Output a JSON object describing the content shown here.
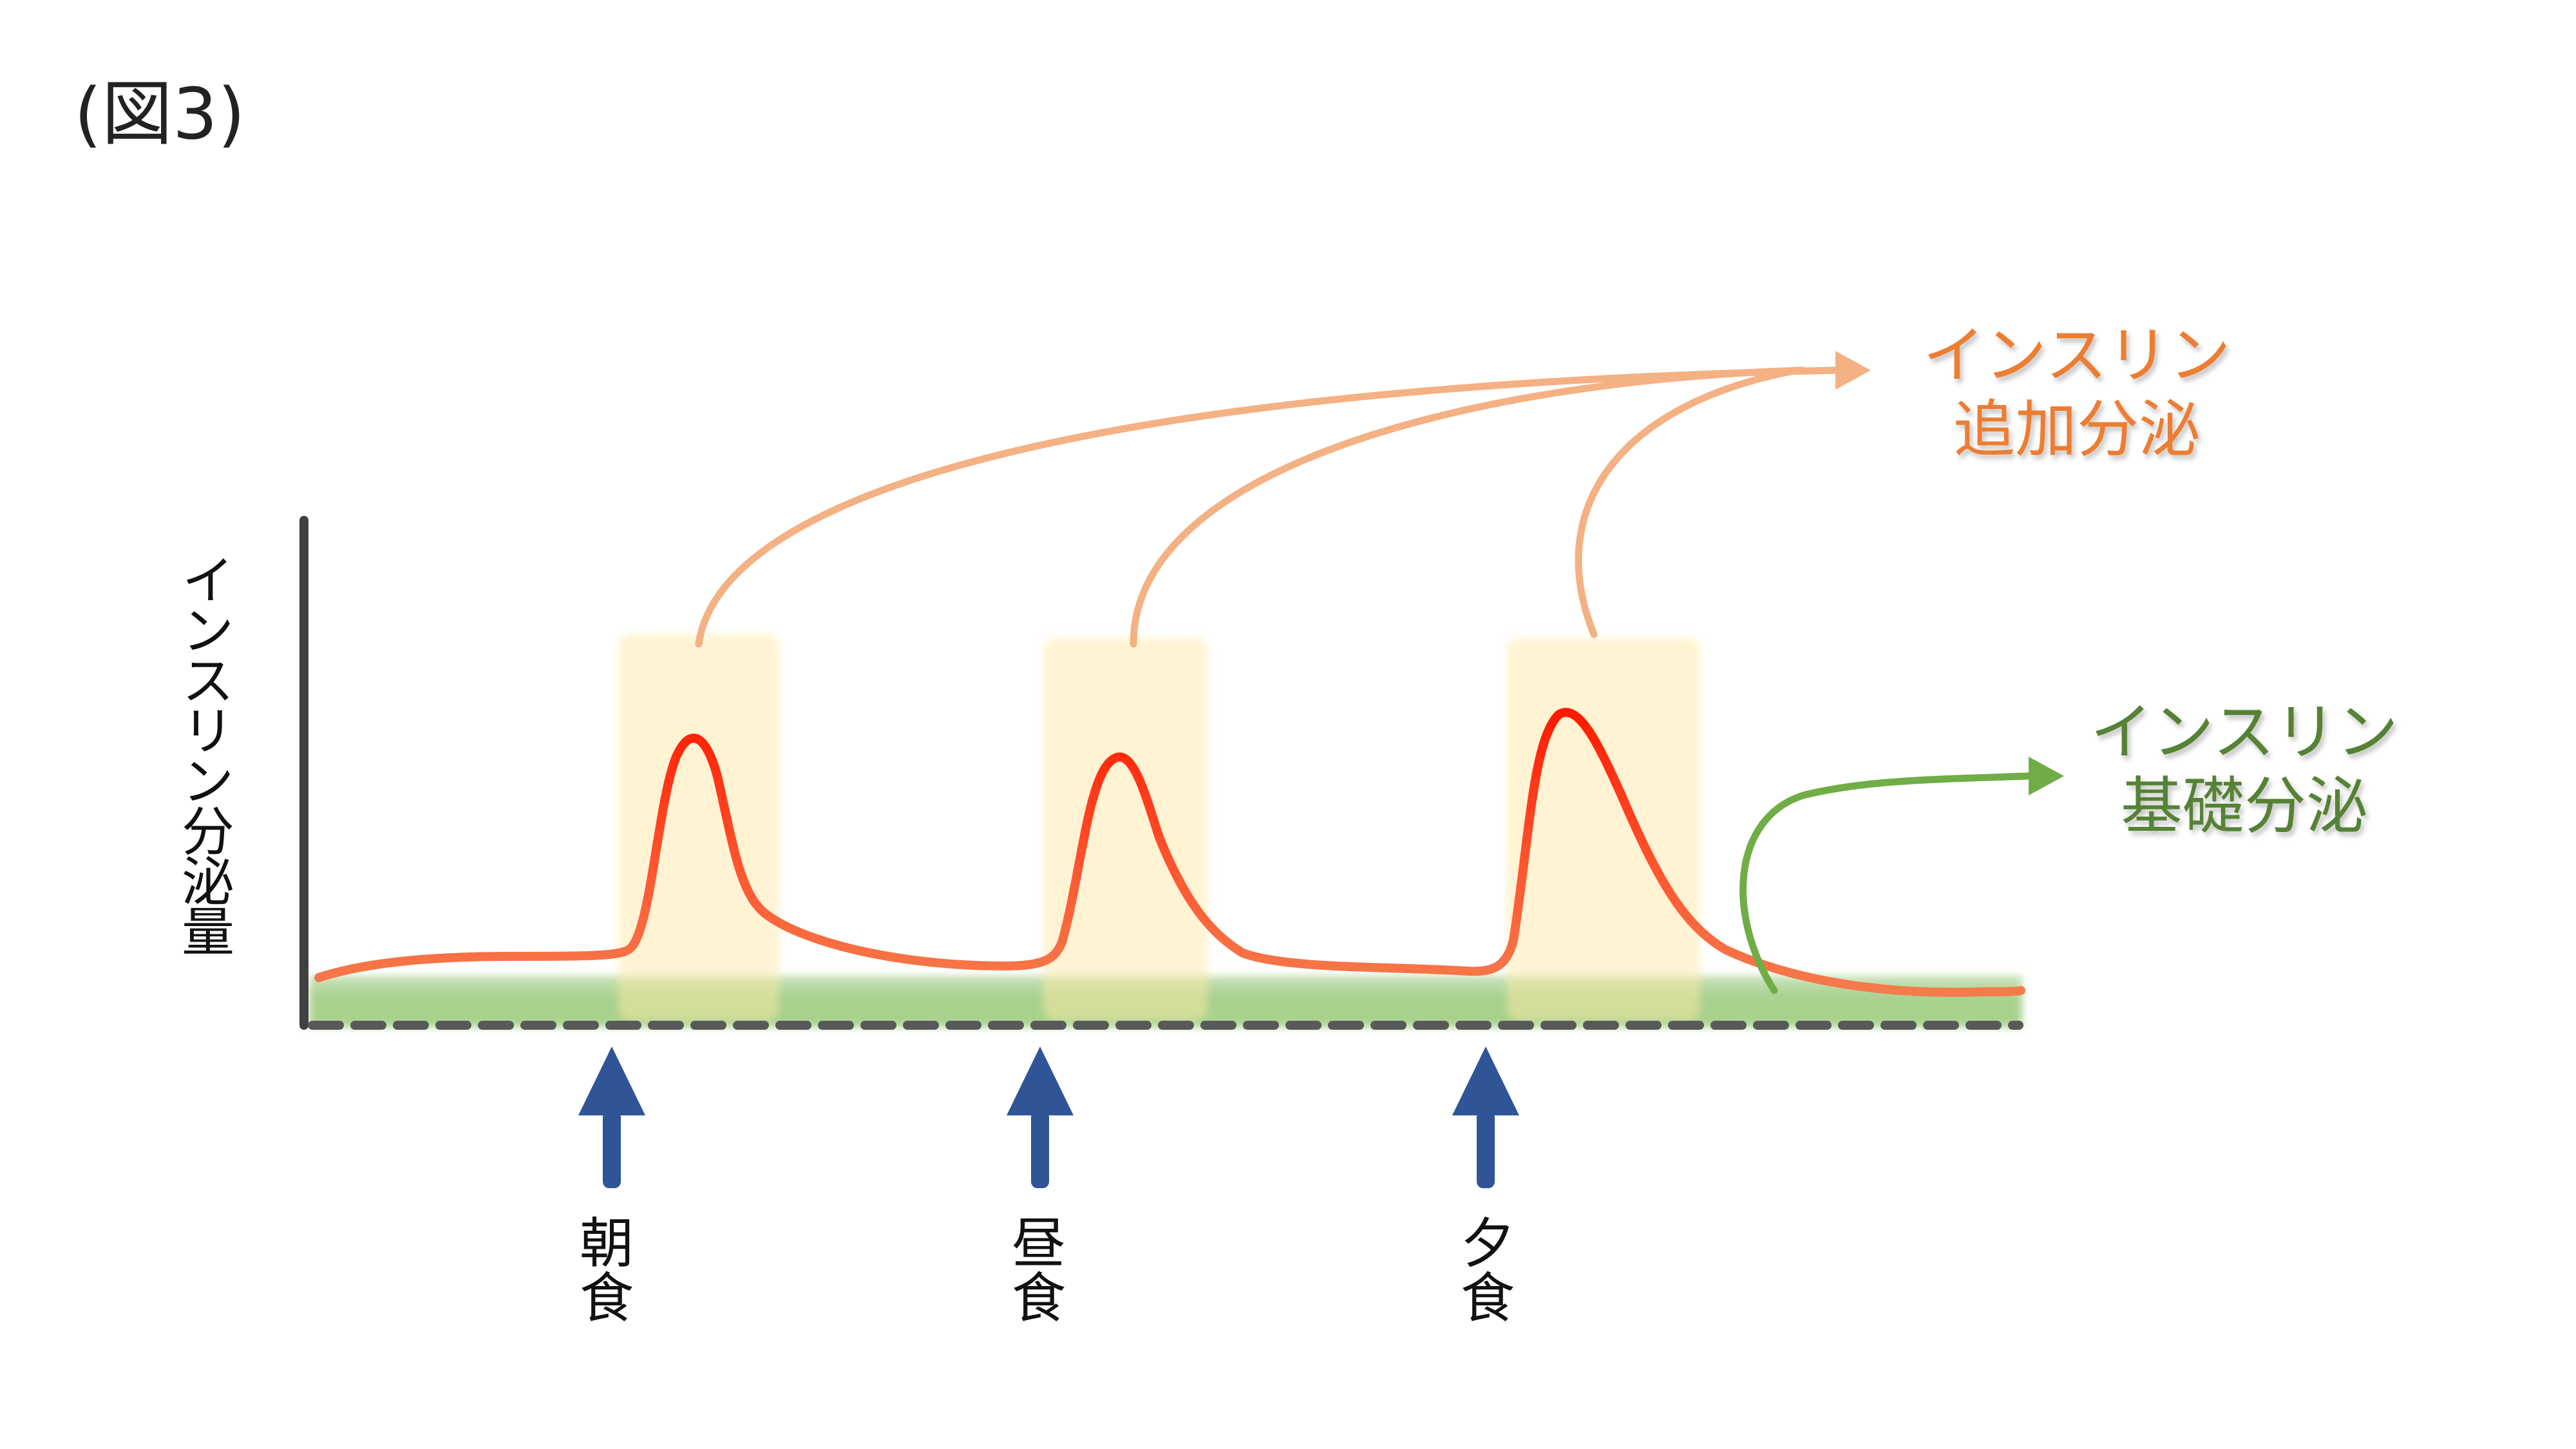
{
  "figure_label": "(図3)",
  "y_axis_label": "インスリン分泌量",
  "labels": {
    "bolus_line1": "インスリン",
    "bolus_line2": "追加分泌",
    "basal_line1": "インスリン",
    "basal_line2": "基礎分泌"
  },
  "meals": [
    {
      "char1": "朝",
      "char2": "食"
    },
    {
      "char1": "昼",
      "char2": "食"
    },
    {
      "char1": "夕",
      "char2": "食"
    }
  ],
  "colors": {
    "curve_red": "#ff2a10",
    "curve_orange": "#f47c4c",
    "highlight": "#fff2cc",
    "basal_fill": "#a9d18e",
    "bolus_arrow": "#f4b183",
    "bolus_text": "#ed7d31",
    "basal_arrow": "#70ad47",
    "basal_text": "#548235",
    "meal_arrow": "#2f5597",
    "axis": "#404040",
    "baseline": "#595959"
  }
}
